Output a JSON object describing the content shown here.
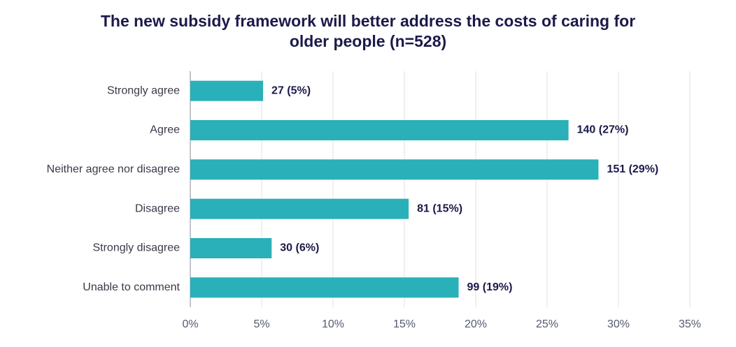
{
  "chart_data": {
    "type": "barh",
    "title": "The new subsidy framework will better address the costs of caring for older people (n=528)",
    "categories": [
      "Strongly agree",
      "Agree",
      "Neither agree nor disagree",
      "Disagree",
      "Strongly disagree",
      "Unable to comment"
    ],
    "values": [
      5.1,
      26.5,
      28.6,
      15.3,
      5.7,
      18.8
    ],
    "value_labels": [
      "27 (5%)",
      "140 (27%)",
      "151 (29%)",
      "81 (15%)",
      "30 (6%)",
      "99 (19%)"
    ],
    "color": "#2ab0b8",
    "xlim": [
      0,
      35
    ],
    "xticks": [
      {
        "value": 0,
        "label": "0%"
      },
      {
        "value": 5,
        "label": "5%"
      },
      {
        "value": 10,
        "label": "10%"
      },
      {
        "value": 15,
        "label": "15%"
      },
      {
        "value": 20,
        "label": "20%"
      },
      {
        "value": 25,
        "label": "25%"
      },
      {
        "value": 30,
        "label": "30%"
      },
      {
        "value": 35,
        "label": "35%"
      }
    ],
    "grid": true
  }
}
